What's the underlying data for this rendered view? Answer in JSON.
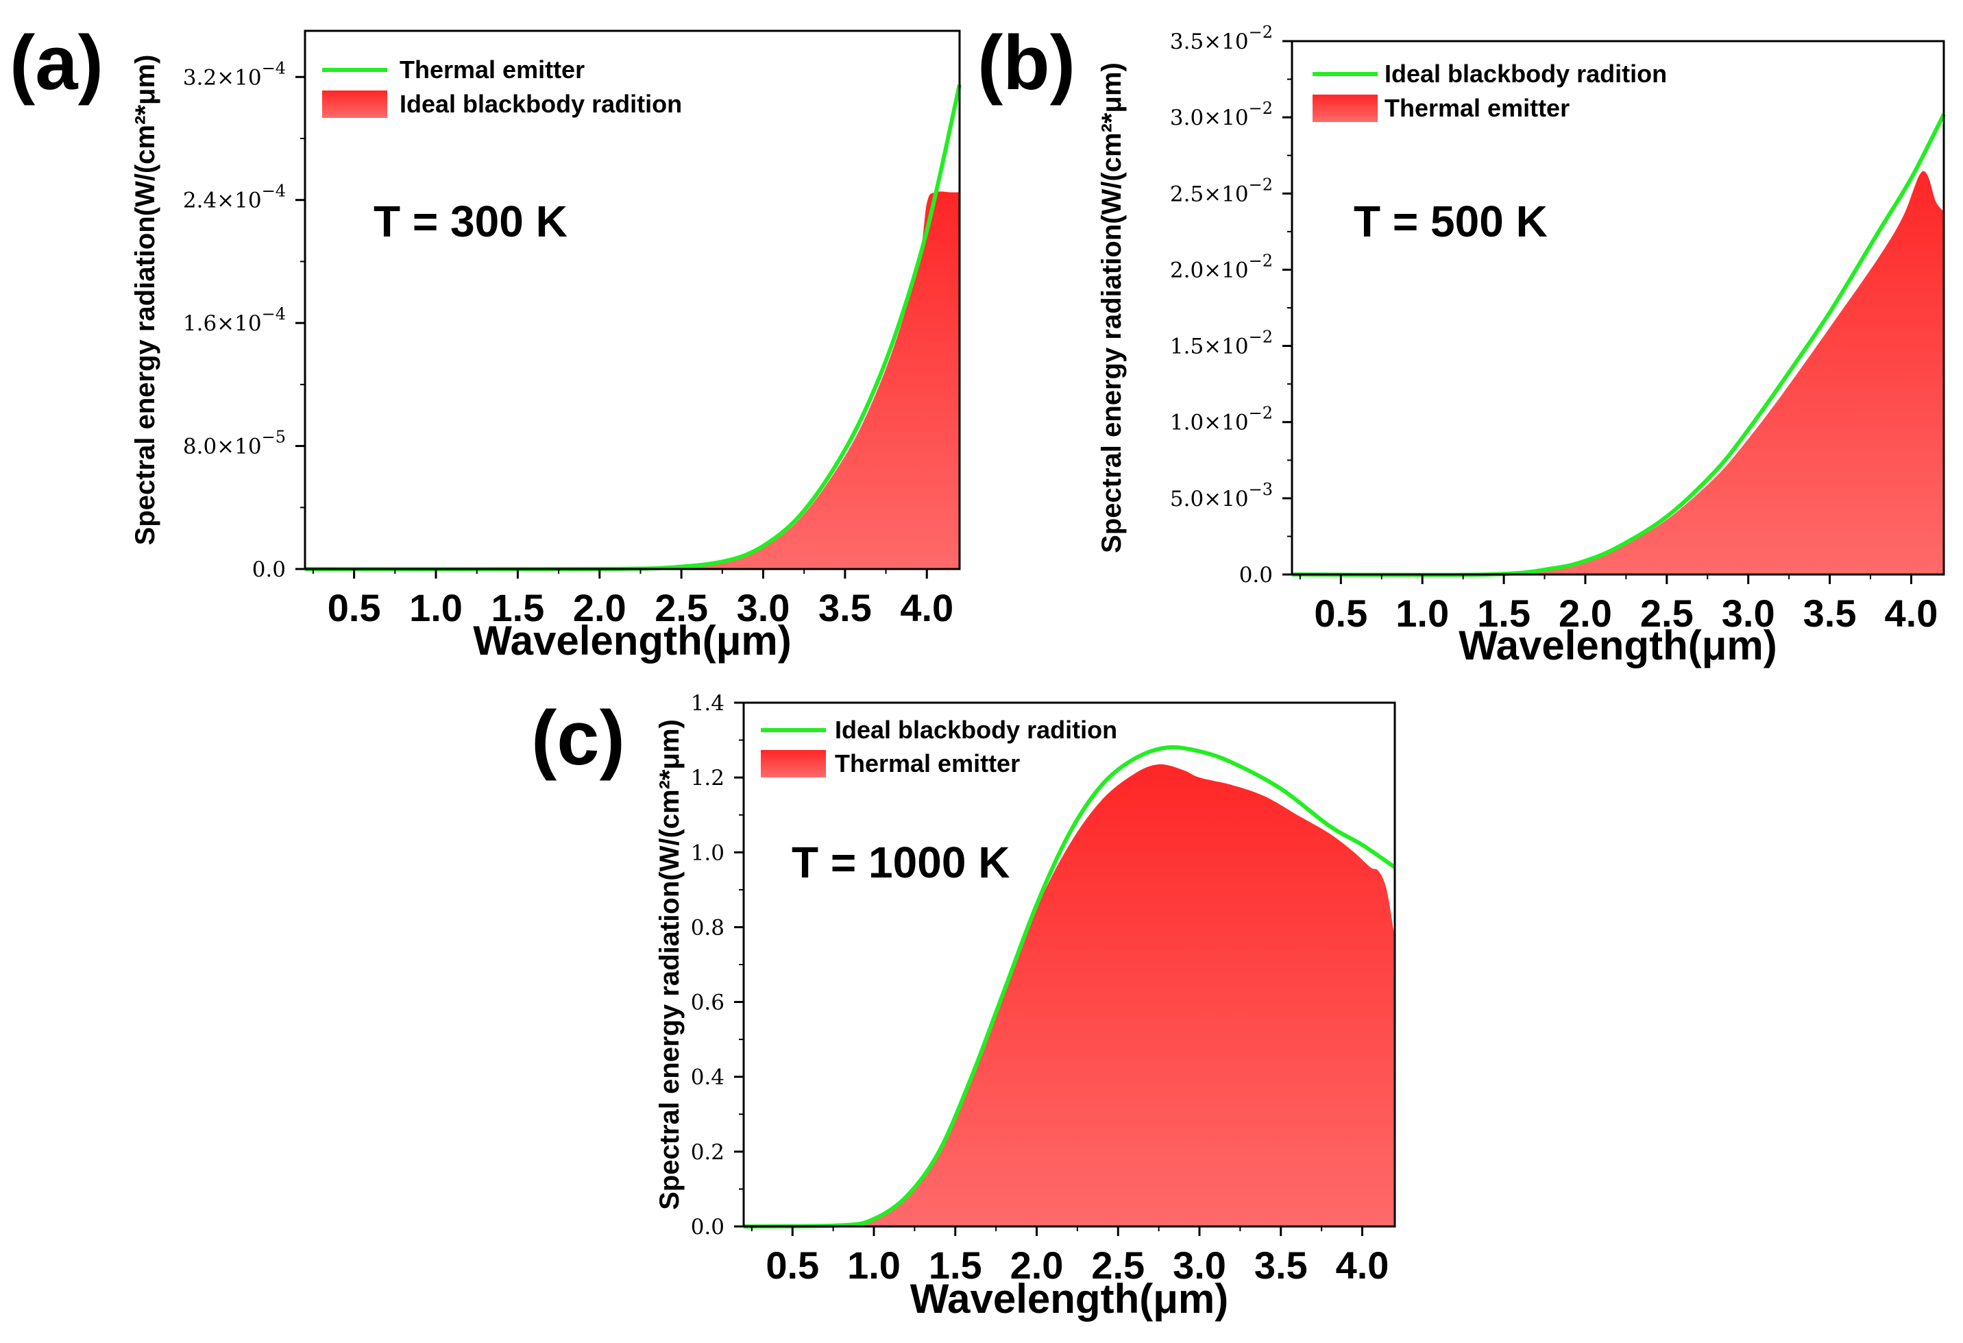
{
  "colors": {
    "blackbody_line": "#22ee22",
    "emitter_fill_top": "#ff2626",
    "emitter_fill_bottom": "#ff6a6a"
  },
  "chart_data": [
    {
      "panel_label": "(a)",
      "type": "area",
      "temperature_label": "T = 300 K",
      "xlabel": "Wavelength(μm)",
      "ylabel": "Spectral energy radiation(W/(cm²*μm)",
      "xlim": [
        0.2,
        4.2
      ],
      "ylim": [
        0,
        0.00035
      ],
      "x_ticks": [
        0.5,
        1.0,
        1.5,
        2.0,
        2.5,
        3.0,
        3.5,
        4.0
      ],
      "x_tick_labels": [
        "0.5",
        "1.0",
        "1.5",
        "2.0",
        "2.5",
        "3.0",
        "3.5",
        "4.0"
      ],
      "y_ticks": [
        0,
        8e-05,
        0.00016,
        0.00024,
        0.00032
      ],
      "y_tick_labels": [
        {
          "mantissa": "0.0",
          "exponent": ""
        },
        {
          "mantissa": "8.0×10",
          "exponent": "−5"
        },
        {
          "mantissa": "1.6×10",
          "exponent": "−4"
        },
        {
          "mantissa": "2.4×10",
          "exponent": "−4"
        },
        {
          "mantissa": "3.2×10",
          "exponent": "−4"
        }
      ],
      "legend": [
        {
          "label": "Thermal emitter",
          "style": "line"
        },
        {
          "label": "Ideal blackbody radition",
          "style": "fill"
        }
      ],
      "series": [
        {
          "name": "Blackbody line",
          "x": [
            0.2,
            2.0,
            2.5,
            2.8,
            3.0,
            3.2,
            3.4,
            3.6,
            3.8,
            4.0,
            4.2
          ],
          "y": [
            0,
            0,
            1.5e-06,
            6e-06,
            1.5e-05,
            3.2e-05,
            6e-05,
            9.8e-05,
            0.00015,
            0.00022,
            0.000315
          ]
        },
        {
          "name": "Emitter area",
          "x": [
            0.2,
            2.0,
            2.5,
            2.8,
            3.0,
            3.2,
            3.4,
            3.6,
            3.8,
            3.95,
            4.0,
            4.05,
            4.15,
            4.2
          ],
          "y": [
            0,
            0,
            1.5e-06,
            6e-06,
            1.4e-05,
            3e-05,
            5.7e-05,
            9.3e-05,
            0.000145,
            0.0002,
            0.000238,
            0.000245,
            0.000245,
            0.000245
          ]
        }
      ]
    },
    {
      "panel_label": "(b)",
      "type": "area",
      "temperature_label": "T = 500 K",
      "xlabel": "Wavelength(μm)",
      "ylabel": "Spectral energy radiation(W/(cm²*μm)",
      "xlim": [
        0.2,
        4.2
      ],
      "ylim": [
        0,
        0.035
      ],
      "x_ticks": [
        0.5,
        1.0,
        1.5,
        2.0,
        2.5,
        3.0,
        3.5,
        4.0
      ],
      "x_tick_labels": [
        "0.5",
        "1.0",
        "1.5",
        "2.0",
        "2.5",
        "3.0",
        "3.5",
        "4.0"
      ],
      "y_ticks": [
        0,
        0.005,
        0.01,
        0.015,
        0.02,
        0.025,
        0.03,
        0.035
      ],
      "y_tick_labels": [
        {
          "mantissa": "0.0",
          "exponent": ""
        },
        {
          "mantissa": "5.0×10",
          "exponent": "−3"
        },
        {
          "mantissa": "1.0×10",
          "exponent": "−2"
        },
        {
          "mantissa": "1.5×10",
          "exponent": "−2"
        },
        {
          "mantissa": "2.0×10",
          "exponent": "−2"
        },
        {
          "mantissa": "2.5×10",
          "exponent": "−2"
        },
        {
          "mantissa": "3.0×10",
          "exponent": "−2"
        },
        {
          "mantissa": "3.5×10",
          "exponent": "−2"
        }
      ],
      "legend": [
        {
          "label": "Ideal blackbody radition",
          "style": "line"
        },
        {
          "label": "Thermal emitter",
          "style": "fill"
        }
      ],
      "series": [
        {
          "name": "Blackbody line",
          "x": [
            0.2,
            1.4,
            1.8,
            2.0,
            2.2,
            2.5,
            2.8,
            3.0,
            3.2,
            3.5,
            3.8,
            4.0,
            4.2
          ],
          "y": [
            0,
            0,
            0.0004,
            0.0009,
            0.0018,
            0.0038,
            0.0068,
            0.0095,
            0.0125,
            0.0172,
            0.0225,
            0.026,
            0.0302
          ]
        },
        {
          "name": "Emitter area",
          "x": [
            0.2,
            1.4,
            1.8,
            2.0,
            2.2,
            2.5,
            2.8,
            3.0,
            3.2,
            3.5,
            3.8,
            3.95,
            4.05,
            4.1,
            4.15,
            4.2
          ],
          "y": [
            0,
            0,
            0.0004,
            0.0009,
            0.0017,
            0.0036,
            0.0064,
            0.0089,
            0.0117,
            0.0162,
            0.0208,
            0.0235,
            0.0262,
            0.0262,
            0.0245,
            0.0238
          ]
        }
      ]
    },
    {
      "panel_label": "(c)",
      "type": "area",
      "temperature_label": "T = 1000 K",
      "xlabel": "Wavelength(μm)",
      "ylabel": "Spectral energy radiation(W/(cm²*μm)",
      "xlim": [
        0.2,
        4.2
      ],
      "ylim": [
        0,
        1.4
      ],
      "x_ticks": [
        0.5,
        1.0,
        1.5,
        2.0,
        2.5,
        3.0,
        3.5,
        4.0
      ],
      "x_tick_labels": [
        "0.5",
        "1.0",
        "1.5",
        "2.0",
        "2.5",
        "3.0",
        "3.5",
        "4.0"
      ],
      "y_ticks": [
        0,
        0.2,
        0.4,
        0.6,
        0.8,
        1.0,
        1.2,
        1.4
      ],
      "y_tick_labels": [
        {
          "mantissa": "0.0",
          "exponent": ""
        },
        {
          "mantissa": "0.2",
          "exponent": ""
        },
        {
          "mantissa": "0.4",
          "exponent": ""
        },
        {
          "mantissa": "0.6",
          "exponent": ""
        },
        {
          "mantissa": "0.8",
          "exponent": ""
        },
        {
          "mantissa": "1.0",
          "exponent": ""
        },
        {
          "mantissa": "1.2",
          "exponent": ""
        },
        {
          "mantissa": "1.4",
          "exponent": ""
        }
      ],
      "legend": [
        {
          "label": "Ideal blackbody radition",
          "style": "line"
        },
        {
          "label": "Thermal emitter",
          "style": "fill"
        }
      ],
      "series": [
        {
          "name": "Blackbody line",
          "x": [
            0.2,
            0.8,
            1.0,
            1.2,
            1.4,
            1.6,
            1.8,
            2.0,
            2.2,
            2.4,
            2.6,
            2.8,
            3.0,
            3.2,
            3.5,
            3.8,
            4.0,
            4.2
          ],
          "y": [
            0,
            0.003,
            0.02,
            0.08,
            0.2,
            0.4,
            0.63,
            0.86,
            1.05,
            1.18,
            1.25,
            1.28,
            1.27,
            1.24,
            1.17,
            1.07,
            1.02,
            0.96
          ]
        },
        {
          "name": "Emitter area",
          "x": [
            0.2,
            0.8,
            1.0,
            1.2,
            1.4,
            1.6,
            1.8,
            2.0,
            2.2,
            2.4,
            2.6,
            2.75,
            2.9,
            3.0,
            3.2,
            3.4,
            3.6,
            3.8,
            3.95,
            4.05,
            4.1,
            4.15,
            4.2
          ],
          "y": [
            0,
            0.003,
            0.02,
            0.08,
            0.2,
            0.4,
            0.62,
            0.85,
            1.02,
            1.14,
            1.21,
            1.235,
            1.22,
            1.2,
            1.18,
            1.15,
            1.1,
            1.05,
            1.0,
            0.96,
            0.95,
            0.9,
            0.77
          ]
        }
      ]
    }
  ]
}
